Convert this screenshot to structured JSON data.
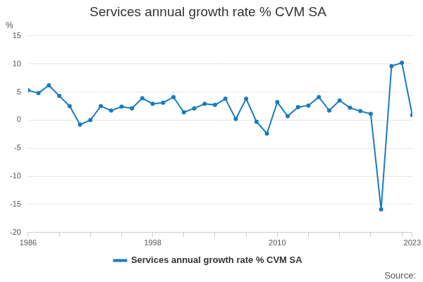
{
  "chart_data": {
    "type": "line",
    "title": "Services annual growth rate % CVM SA",
    "y_label": "%",
    "source": "Source:",
    "categories": [
      "1986",
      null,
      null,
      null,
      null,
      null,
      null,
      null,
      null,
      null,
      null,
      null,
      "1998",
      null,
      null,
      null,
      null,
      null,
      null,
      null,
      null,
      null,
      null,
      null,
      "2010",
      null,
      null,
      null,
      null,
      null,
      null,
      null,
      null,
      null,
      null,
      null,
      null,
      "2023"
    ],
    "series": [
      {
        "name": "Services annual growth rate % CVM SA",
        "color": "#1a7bbf",
        "marker": "circle",
        "values": [
          5.3,
          4.8,
          6.2,
          4.3,
          2.5,
          -0.8,
          0,
          2.5,
          1.7,
          2.4,
          2.1,
          3.9,
          2.9,
          3.1,
          4.1,
          1.4,
          2.1,
          2.9,
          2.7,
          3.8,
          0.2,
          3.8,
          -0.3,
          -2.4,
          3.2,
          0.7,
          2.3,
          2.6,
          4.1,
          1.7,
          3.5,
          2.2,
          1.6,
          1.1,
          -15.9,
          9.6,
          10.2,
          0.9
        ]
      }
    ],
    "ylim": [
      -20,
      15
    ],
    "yticks": [
      -20,
      -15,
      -10,
      -5,
      0,
      5,
      10,
      15
    ],
    "grid": true,
    "legend": "bottom"
  }
}
